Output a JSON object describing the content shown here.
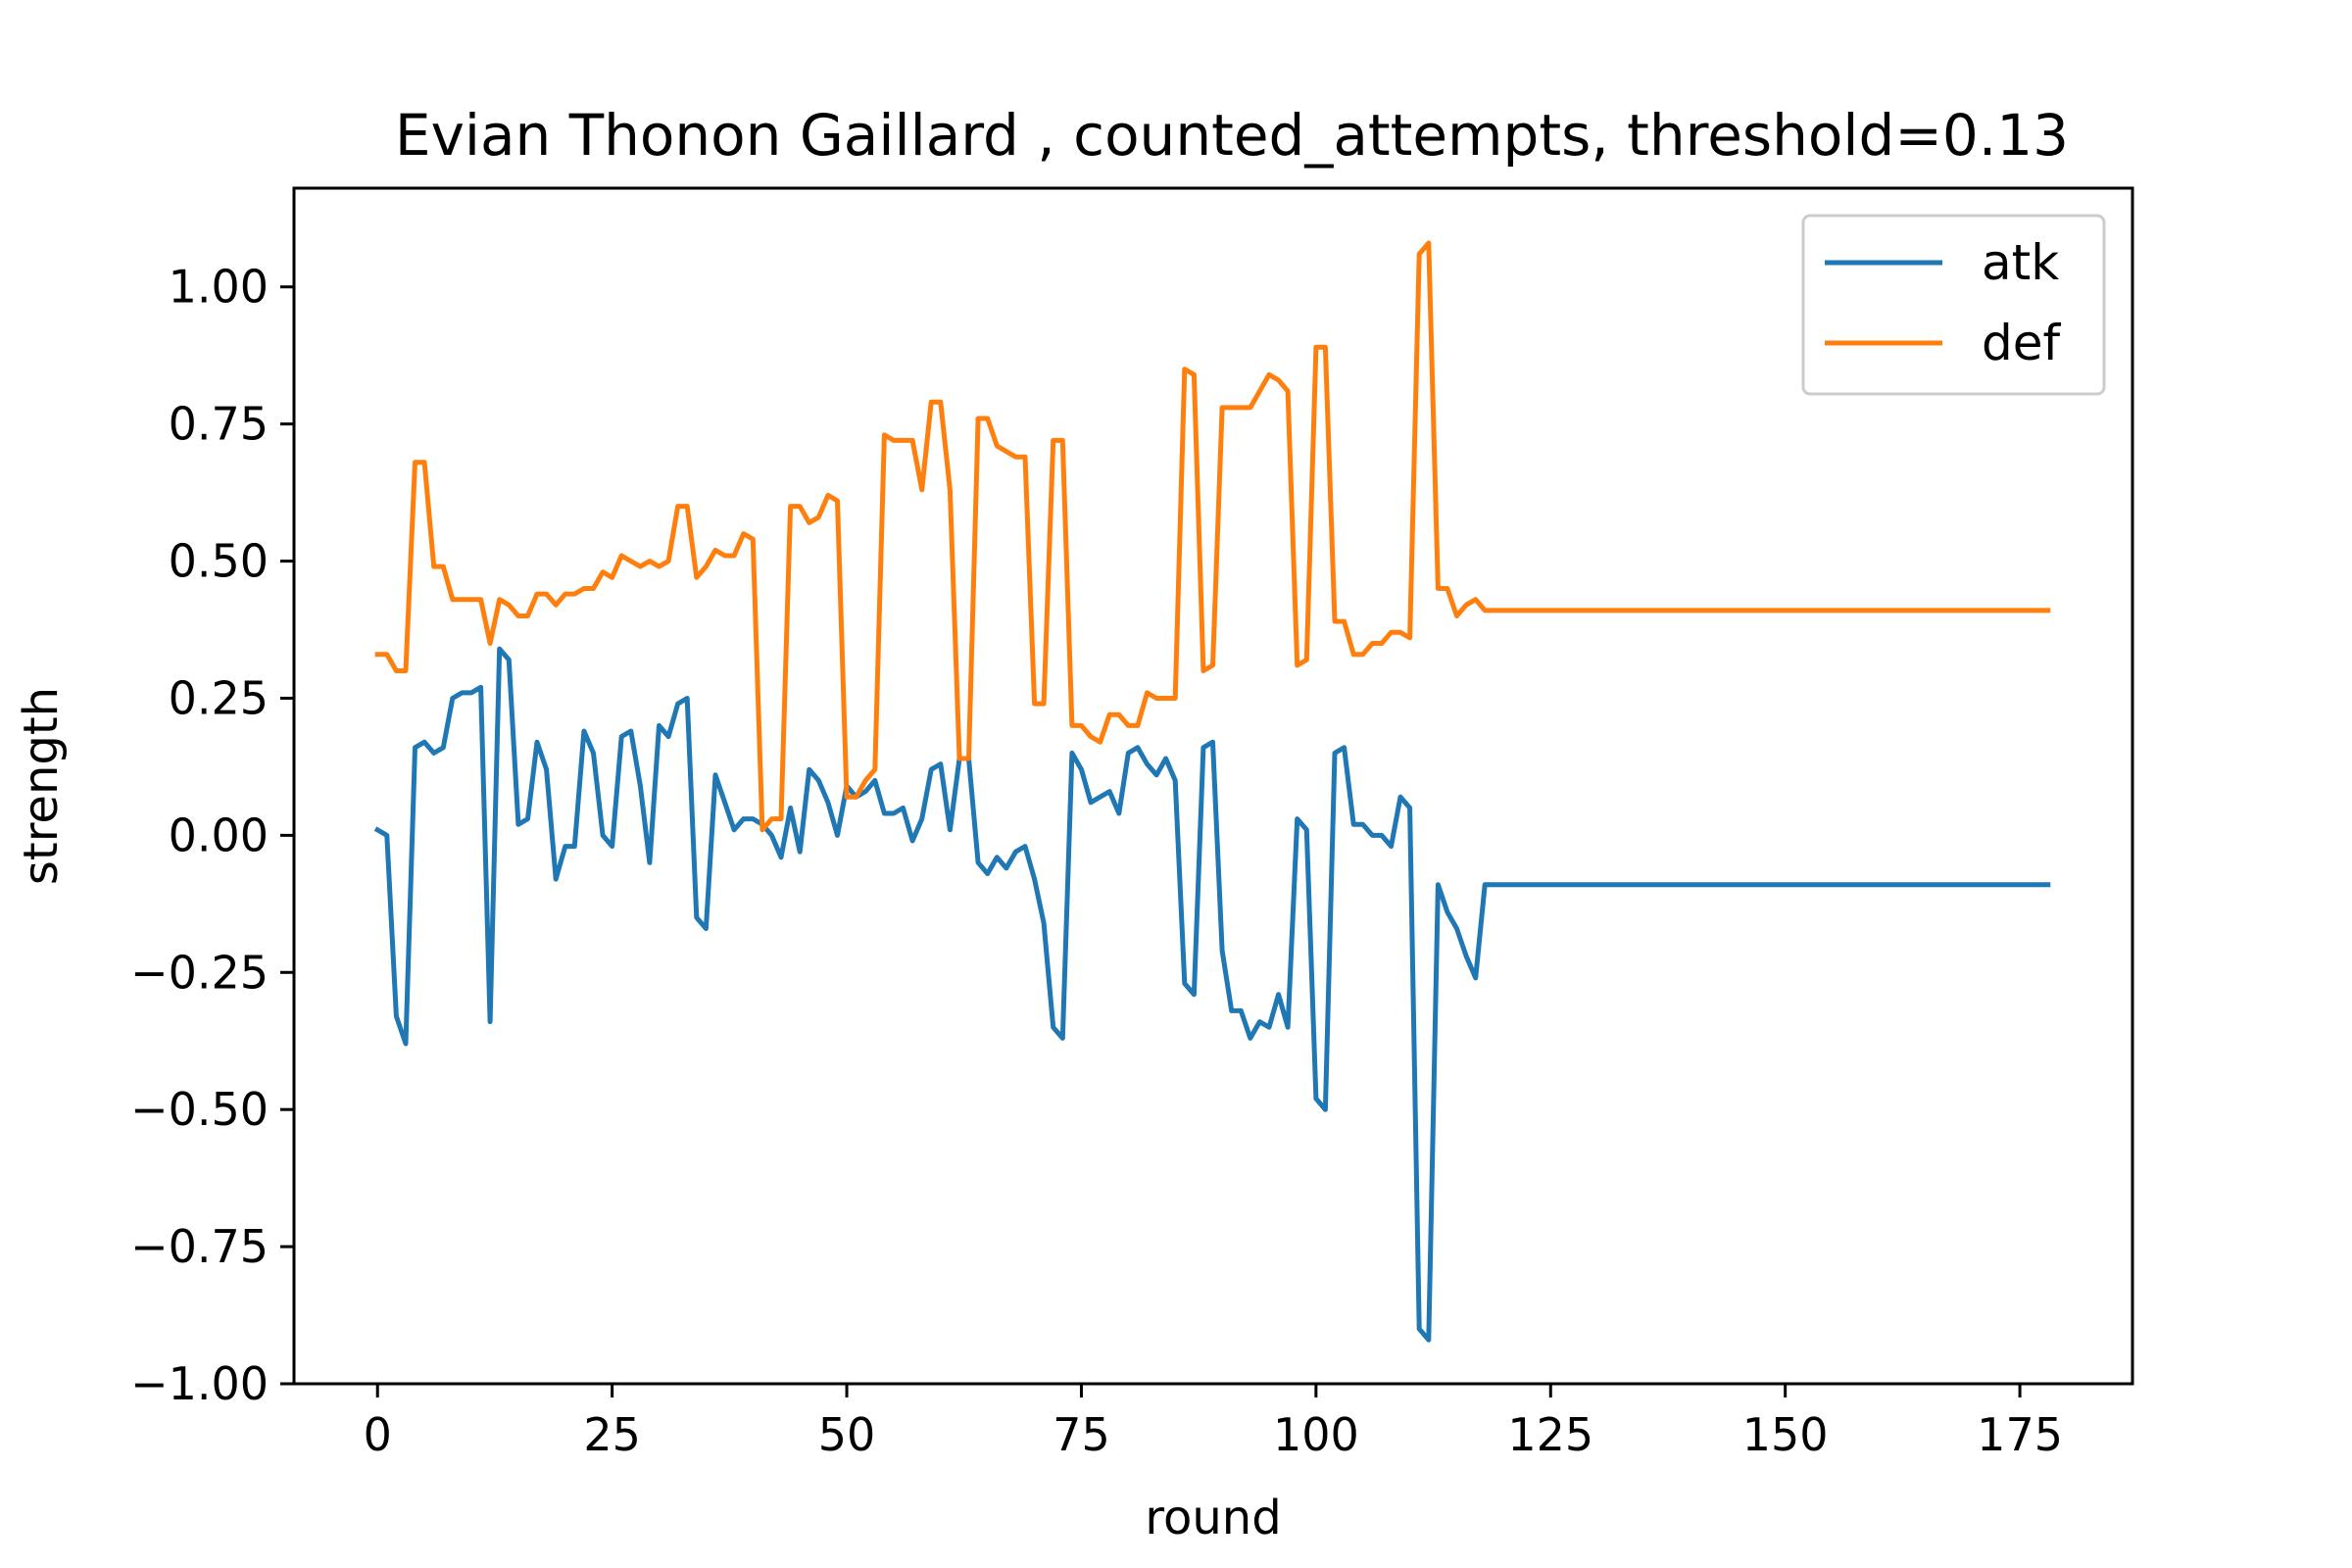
{
  "chart_data": {
    "type": "line",
    "title": "Evian Thonon Gaillard , counted_attempts, threshold=0.13",
    "xlabel": "round",
    "ylabel": "strength",
    "xlim": [
      -8.9,
      187.0
    ],
    "ylim": [
      -1.0,
      1.18
    ],
    "xticks": [
      0,
      25,
      50,
      75,
      100,
      125,
      150,
      175
    ],
    "xtick_labels": [
      "0",
      "25",
      "50",
      "75",
      "100",
      "125",
      "150",
      "175"
    ],
    "yticks": [
      -1.0,
      -0.75,
      -0.5,
      -0.25,
      0.0,
      0.25,
      0.5,
      0.75,
      1.0
    ],
    "ytick_labels": [
      "−1.00",
      "−0.75",
      "−0.50",
      "−0.25",
      "0.00",
      "0.25",
      "0.50",
      "0.75",
      "1.00"
    ],
    "grid": false,
    "legend_position": "top-right",
    "series": [
      {
        "name": "atk",
        "color": "#1f77b4",
        "x": [
          0,
          1,
          2,
          3,
          4,
          5,
          6,
          7,
          8,
          9,
          10,
          11,
          12,
          13,
          14,
          15,
          16,
          17,
          18,
          19,
          20,
          21,
          22,
          23,
          24,
          25,
          26,
          27,
          28,
          29,
          30,
          31,
          32,
          33,
          34,
          35,
          36,
          37,
          38,
          39,
          40,
          41,
          42,
          43,
          44,
          45,
          46,
          47,
          48,
          49,
          50,
          51,
          52,
          53,
          54,
          55,
          56,
          57,
          58,
          59,
          60,
          61,
          62,
          63,
          64,
          65,
          66,
          67,
          68,
          69,
          70,
          71,
          72,
          73,
          74,
          75,
          76,
          77,
          78,
          79,
          80,
          81,
          82,
          83,
          84,
          85,
          86,
          87,
          88,
          89,
          90,
          91,
          92,
          93,
          94,
          95,
          96,
          97,
          98,
          99,
          100,
          101,
          102,
          103,
          104,
          105,
          106,
          107,
          108,
          109,
          110,
          111,
          112,
          113,
          114,
          115,
          116,
          117,
          118,
          178
        ],
        "y": [
          0.01,
          0.0,
          -0.33,
          -0.38,
          0.16,
          0.17,
          0.15,
          0.16,
          0.25,
          0.26,
          0.26,
          0.27,
          -0.34,
          0.34,
          0.32,
          0.02,
          0.03,
          0.17,
          0.12,
          -0.08,
          -0.02,
          -0.02,
          0.19,
          0.15,
          0.0,
          -0.02,
          0.18,
          0.19,
          0.09,
          -0.05,
          0.2,
          0.18,
          0.24,
          0.25,
          -0.15,
          -0.17,
          0.11,
          0.06,
          0.01,
          0.03,
          0.03,
          0.02,
          0.0,
          -0.04,
          0.05,
          -0.03,
          0.12,
          0.1,
          0.06,
          0.0,
          0.09,
          0.07,
          0.08,
          0.1,
          0.04,
          0.04,
          0.05,
          -0.01,
          0.03,
          0.12,
          0.13,
          0.01,
          0.14,
          0.14,
          -0.05,
          -0.07,
          -0.04,
          -0.06,
          -0.03,
          -0.02,
          -0.08,
          -0.16,
          -0.35,
          -0.37,
          0.15,
          0.12,
          0.06,
          0.07,
          0.08,
          0.04,
          0.15,
          0.16,
          0.13,
          0.11,
          0.14,
          0.1,
          -0.27,
          -0.29,
          0.16,
          0.17,
          -0.21,
          -0.32,
          -0.32,
          -0.37,
          -0.34,
          -0.35,
          -0.29,
          -0.35,
          0.03,
          0.01,
          -0.48,
          -0.5,
          0.15,
          0.16,
          0.02,
          0.02,
          0.0,
          0.0,
          -0.02,
          0.07,
          0.05,
          -0.9,
          -0.92,
          -0.09,
          -0.14,
          -0.17,
          -0.22,
          -0.26,
          -0.09,
          -0.09
        ]
      },
      {
        "name": "def",
        "color": "#ff7f0e",
        "x": [
          0,
          1,
          2,
          3,
          4,
          5,
          6,
          7,
          8,
          9,
          10,
          11,
          12,
          13,
          14,
          15,
          16,
          17,
          18,
          19,
          20,
          21,
          22,
          23,
          24,
          25,
          26,
          27,
          28,
          29,
          30,
          31,
          32,
          33,
          34,
          35,
          36,
          37,
          38,
          39,
          40,
          41,
          42,
          43,
          44,
          45,
          46,
          47,
          48,
          49,
          50,
          51,
          52,
          53,
          54,
          55,
          56,
          57,
          58,
          59,
          60,
          61,
          62,
          63,
          64,
          65,
          66,
          67,
          68,
          69,
          70,
          71,
          72,
          73,
          74,
          75,
          76,
          77,
          78,
          79,
          80,
          81,
          82,
          83,
          84,
          85,
          86,
          87,
          88,
          89,
          90,
          91,
          92,
          93,
          94,
          95,
          96,
          97,
          98,
          99,
          100,
          101,
          102,
          103,
          104,
          105,
          106,
          107,
          108,
          109,
          110,
          111,
          112,
          113,
          114,
          115,
          116,
          117,
          118,
          178
        ],
        "y": [
          0.33,
          0.33,
          0.3,
          0.3,
          0.68,
          0.68,
          0.49,
          0.49,
          0.43,
          0.43,
          0.43,
          0.43,
          0.35,
          0.43,
          0.42,
          0.4,
          0.4,
          0.44,
          0.44,
          0.42,
          0.44,
          0.44,
          0.45,
          0.45,
          0.48,
          0.47,
          0.51,
          0.5,
          0.49,
          0.5,
          0.49,
          0.5,
          0.6,
          0.6,
          0.47,
          0.49,
          0.52,
          0.51,
          0.51,
          0.55,
          0.54,
          0.01,
          0.03,
          0.03,
          0.6,
          0.6,
          0.57,
          0.58,
          0.62,
          0.61,
          0.07,
          0.07,
          0.1,
          0.12,
          0.73,
          0.72,
          0.72,
          0.72,
          0.63,
          0.79,
          0.79,
          0.63,
          0.14,
          0.14,
          0.76,
          0.76,
          0.71,
          0.7,
          0.69,
          0.69,
          0.24,
          0.24,
          0.72,
          0.72,
          0.2,
          0.2,
          0.18,
          0.17,
          0.22,
          0.22,
          0.2,
          0.2,
          0.26,
          0.25,
          0.25,
          0.25,
          0.85,
          0.84,
          0.3,
          0.31,
          0.78,
          0.78,
          0.78,
          0.78,
          0.81,
          0.84,
          0.83,
          0.81,
          0.31,
          0.32,
          0.89,
          0.89,
          0.39,
          0.39,
          0.33,
          0.33,
          0.35,
          0.35,
          0.37,
          0.37,
          0.36,
          1.06,
          1.08,
          0.45,
          0.45,
          0.4,
          0.42,
          0.43,
          0.41,
          0.41
        ]
      }
    ]
  }
}
